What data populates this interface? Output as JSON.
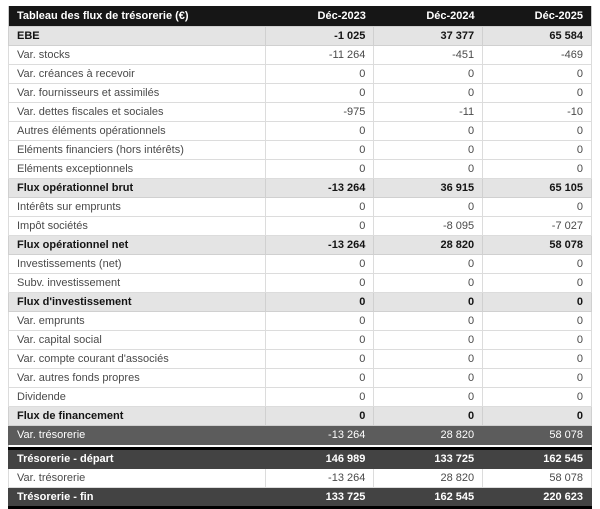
{
  "table": {
    "title": "Tableau des flux de trésorerie (€)",
    "columns": [
      "Déc-2023",
      "Déc-2024",
      "Déc-2025"
    ],
    "colors": {
      "header_bg": "#161616",
      "subtotal_bg": "#e4e4e4",
      "highlight_bg": "#5c5c5c",
      "dark_bg": "#434343"
    },
    "sections": [
      {
        "name": "flux",
        "rows": [
          {
            "label": "EBE",
            "values": [
              "-1 025",
              "37 377",
              "65 584"
            ],
            "style": "subtotal"
          },
          {
            "label": "Var. stocks",
            "values": [
              "-11 264",
              "-451",
              "-469"
            ],
            "style": "normal"
          },
          {
            "label": "Var. créances à recevoir",
            "values": [
              "0",
              "0",
              "0"
            ],
            "style": "normal"
          },
          {
            "label": "Var. fournisseurs et assimilés",
            "values": [
              "0",
              "0",
              "0"
            ],
            "style": "normal"
          },
          {
            "label": "Var. dettes fiscales et sociales",
            "values": [
              "-975",
              "-11",
              "-10"
            ],
            "style": "normal"
          },
          {
            "label": "Autres éléments opérationnels",
            "values": [
              "0",
              "0",
              "0"
            ],
            "style": "normal"
          },
          {
            "label": "Eléments financiers (hors intérêts)",
            "values": [
              "0",
              "0",
              "0"
            ],
            "style": "normal"
          },
          {
            "label": "Eléments exceptionnels",
            "values": [
              "0",
              "0",
              "0"
            ],
            "style": "normal"
          },
          {
            "label": "Flux opérationnel brut",
            "values": [
              "-13 264",
              "36 915",
              "65 105"
            ],
            "style": "subtotal"
          },
          {
            "label": "Intérêts sur emprunts",
            "values": [
              "0",
              "0",
              "0"
            ],
            "style": "normal"
          },
          {
            "label": "Impôt sociétés",
            "values": [
              "0",
              "-8 095",
              "-7 027"
            ],
            "style": "normal"
          },
          {
            "label": "Flux opérationnel net",
            "values": [
              "-13 264",
              "28 820",
              "58 078"
            ],
            "style": "subtotal"
          },
          {
            "label": "Investissements (net)",
            "values": [
              "0",
              "0",
              "0"
            ],
            "style": "normal"
          },
          {
            "label": "Subv. investissement",
            "values": [
              "0",
              "0",
              "0"
            ],
            "style": "normal"
          },
          {
            "label": "Flux d'investissement",
            "values": [
              "0",
              "0",
              "0"
            ],
            "style": "subtotal"
          },
          {
            "label": "Var. emprunts",
            "values": [
              "0",
              "0",
              "0"
            ],
            "style": "normal"
          },
          {
            "label": "Var. capital social",
            "values": [
              "0",
              "0",
              "0"
            ],
            "style": "normal"
          },
          {
            "label": "Var. compte courant d'associés",
            "values": [
              "0",
              "0",
              "0"
            ],
            "style": "normal"
          },
          {
            "label": "Var. autres fonds propres",
            "values": [
              "0",
              "0",
              "0"
            ],
            "style": "normal"
          },
          {
            "label": "Dividende",
            "values": [
              "0",
              "0",
              "0"
            ],
            "style": "normal"
          },
          {
            "label": "Flux de financement",
            "values": [
              "0",
              "0",
              "0"
            ],
            "style": "subtotal"
          },
          {
            "label": "Var. trésorerie",
            "values": [
              "-13 264",
              "28 820",
              "58 078"
            ],
            "style": "highlight"
          }
        ]
      },
      {
        "name": "tresorerie",
        "rows": [
          {
            "label": "Trésorerie - départ",
            "values": [
              "146 989",
              "133 725",
              "162 545"
            ],
            "style": "dark"
          },
          {
            "label": "Var. trésorerie",
            "values": [
              "-13 264",
              "28 820",
              "58 078"
            ],
            "style": "normal"
          },
          {
            "label": "Trésorerie - fin",
            "values": [
              "133 725",
              "162 545",
              "220 623"
            ],
            "style": "dark"
          }
        ]
      }
    ]
  }
}
